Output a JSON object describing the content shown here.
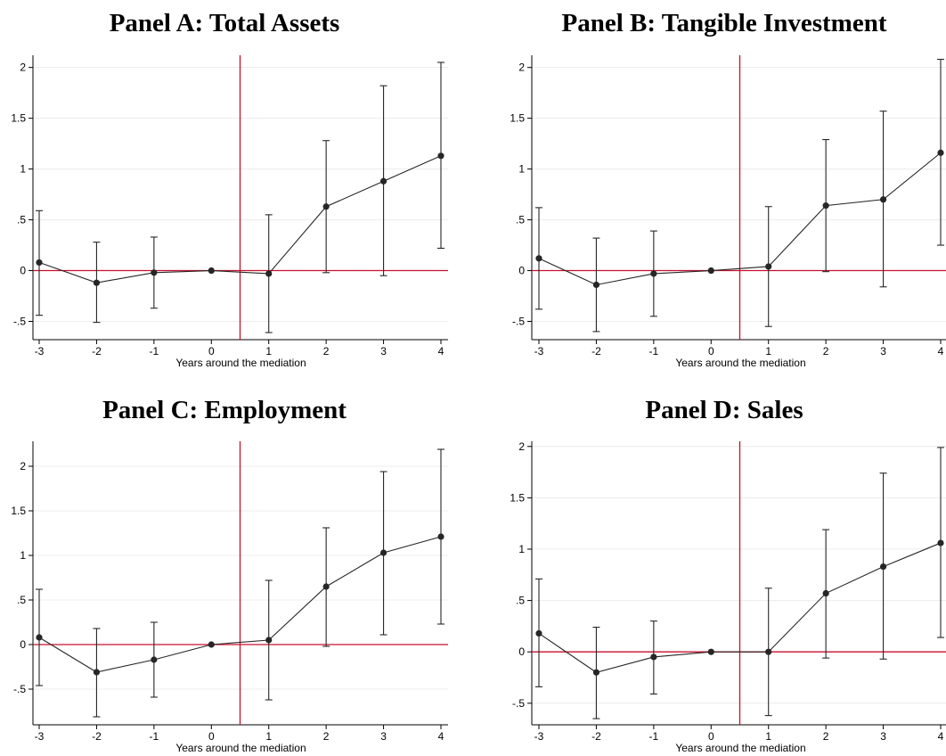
{
  "chart_data": [
    {
      "type": "line",
      "title": "Panel A: Total Assets",
      "xlabel": "Years around the mediation",
      "ylabel": "",
      "x": [
        -3,
        -2,
        -1,
        0,
        1,
        2,
        3,
        4
      ],
      "xticks": [
        "-3",
        "-2",
        "-1",
        "0",
        "1",
        "2",
        "3",
        "4"
      ],
      "yticks": [
        "-.5",
        "0",
        ".5",
        "1",
        "1.5",
        "2"
      ],
      "ylim": [
        -0.68,
        2.12
      ],
      "series": [
        {
          "values": [
            0.08,
            -0.12,
            -0.02,
            0.0,
            -0.03,
            0.63,
            0.88,
            1.13
          ],
          "ci_low": [
            -0.44,
            -0.51,
            -0.37,
            0.0,
            -0.61,
            -0.02,
            -0.05,
            0.22
          ],
          "ci_high": [
            0.59,
            0.28,
            0.33,
            0.0,
            0.55,
            1.28,
            1.82,
            2.05
          ]
        }
      ],
      "reference_lines": {
        "horizontal_y": 0,
        "vertical_x": 0.5,
        "color": "#c8102e"
      }
    },
    {
      "type": "line",
      "title": "Panel B: Tangible Investment",
      "xlabel": "Years around the mediation",
      "ylabel": "",
      "x": [
        -3,
        -2,
        -1,
        0,
        1,
        2,
        3,
        4
      ],
      "xticks": [
        "-3",
        "-2",
        "-1",
        "0",
        "1",
        "2",
        "3",
        "4"
      ],
      "yticks": [
        "-.5",
        "0",
        ".5",
        "1",
        "1.5",
        "2"
      ],
      "ylim": [
        -0.68,
        2.12
      ],
      "series": [
        {
          "values": [
            0.12,
            -0.14,
            -0.03,
            0.0,
            0.04,
            0.64,
            0.7,
            1.16
          ],
          "ci_low": [
            -0.38,
            -0.6,
            -0.45,
            0.0,
            -0.55,
            -0.01,
            -0.16,
            0.25
          ],
          "ci_high": [
            0.62,
            0.32,
            0.39,
            0.0,
            0.63,
            1.29,
            1.57,
            2.08
          ]
        }
      ],
      "reference_lines": {
        "horizontal_y": 0,
        "vertical_x": 0.5,
        "color": "#c8102e"
      }
    },
    {
      "type": "line",
      "title": "Panel C: Employment",
      "xlabel": "Years around the mediation",
      "ylabel": "",
      "x": [
        -3,
        -2,
        -1,
        0,
        1,
        2,
        3,
        4
      ],
      "xticks": [
        "-3",
        "-2",
        "-1",
        "0",
        "1",
        "2",
        "3",
        "4"
      ],
      "yticks": [
        "-.5",
        "0",
        ".5",
        "1",
        "1.5",
        "2"
      ],
      "ylim": [
        -0.9,
        2.28
      ],
      "series": [
        {
          "values": [
            0.08,
            -0.31,
            -0.17,
            0.0,
            0.05,
            0.65,
            1.03,
            1.21
          ],
          "ci_low": [
            -0.46,
            -0.81,
            -0.59,
            0.0,
            -0.62,
            -0.02,
            0.11,
            0.23
          ],
          "ci_high": [
            0.62,
            0.18,
            0.25,
            0.0,
            0.72,
            1.31,
            1.94,
            2.19
          ]
        }
      ],
      "reference_lines": {
        "horizontal_y": 0,
        "vertical_x": 0.5,
        "color": "#c8102e"
      }
    },
    {
      "type": "line",
      "title": "Panel D: Sales",
      "xlabel": "Years around the mediation",
      "ylabel": "",
      "x": [
        -3,
        -2,
        -1,
        0,
        1,
        2,
        3,
        4
      ],
      "xticks": [
        "-3",
        "-2",
        "-1",
        "0",
        "1",
        "2",
        "3",
        "4"
      ],
      "yticks": [
        "-.5",
        "0",
        ".5",
        "1",
        "1.5",
        "2"
      ],
      "ylim": [
        -0.71,
        2.05
      ],
      "series": [
        {
          "values": [
            0.18,
            -0.2,
            -0.05,
            0.0,
            0.0,
            0.57,
            0.83,
            1.06
          ],
          "ci_low": [
            -0.34,
            -0.65,
            -0.41,
            0.0,
            -0.62,
            -0.06,
            -0.07,
            0.14
          ],
          "ci_high": [
            0.71,
            0.24,
            0.3,
            0.0,
            0.62,
            1.19,
            1.74,
            1.99
          ]
        }
      ],
      "reference_lines": {
        "horizontal_y": 0,
        "vertical_x": 0.5,
        "color": "#c8102e"
      }
    }
  ],
  "colors": {
    "reference": "#c8102e",
    "series": "#262626",
    "gridline": "#ececec",
    "axis": "#000000"
  }
}
